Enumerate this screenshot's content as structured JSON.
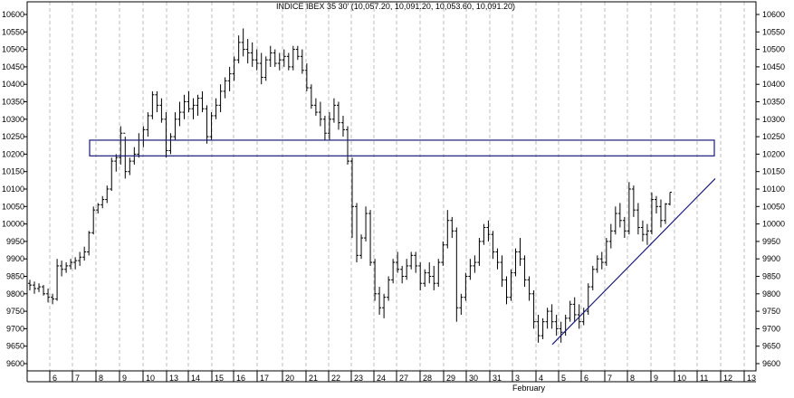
{
  "chart_data": {
    "type": "ohlc",
    "title": "INDICE IBEX 35 30'  (10,057.20, 10,091.20, 10,053.60, 10,091.20)",
    "ylim": [
      9575,
      10640
    ],
    "y_ticks": [
      9600,
      9650,
      9700,
      9750,
      9800,
      9850,
      9900,
      9950,
      10000,
      10050,
      10100,
      10150,
      10200,
      10250,
      10300,
      10350,
      10400,
      10450,
      10500,
      10550,
      10600
    ],
    "y_tick_labels": [
      "9600",
      "9650",
      "9700",
      "9750",
      "9800",
      "9850",
      "9900",
      "9950",
      "10000",
      "10050",
      "10100",
      "10150",
      "10200",
      "10250",
      "10300",
      "10350",
      "10400",
      "10450",
      "10500",
      "10550",
      "10600"
    ],
    "x_labels": [
      "6",
      "7",
      "8",
      "9",
      "10",
      "13",
      "14",
      "15",
      "16",
      "17",
      "20",
      "21",
      "22",
      "23",
      "24",
      "27",
      "28",
      "29",
      "30",
      "31",
      "3",
      "4",
      "5",
      "6",
      "7",
      "8",
      "9",
      "10",
      "11",
      "12",
      "13"
    ],
    "x_sublabel": "February",
    "grid": true,
    "overlays": {
      "resistance_box": {
        "y_low": 10195,
        "y_high": 10240
      },
      "trendline": {
        "y_start": 9655,
        "y_end": 10130
      }
    },
    "series": [
      {
        "bars": [
          [
            9830,
            9840,
            9810,
            9825
          ],
          [
            9825,
            9835,
            9800,
            9815
          ],
          [
            9815,
            9830,
            9805,
            9820
          ],
          [
            9820,
            9825,
            9795,
            9800
          ],
          [
            9800,
            9815,
            9775,
            9790
          ],
          [
            9790,
            9800,
            9770,
            9785
          ],
          [
            9785,
            9900,
            9780,
            9880
          ],
          [
            9880,
            9895,
            9850,
            9870
          ],
          [
            9870,
            9890,
            9860,
            9880
          ],
          [
            9880,
            9900,
            9870,
            9890
          ],
          [
            9890,
            9905,
            9870,
            9895
          ],
          [
            9895,
            9920,
            9880,
            9905
          ],
          [
            9905,
            9935,
            9895,
            9920
          ],
          [
            9920,
            9980,
            9910,
            9975
          ],
          [
            9975,
            10050,
            9970,
            10040
          ],
          [
            10040,
            10060,
            10030,
            10055
          ],
          [
            10055,
            10080,
            10045,
            10070
          ],
          [
            10070,
            10110,
            10060,
            10100
          ],
          [
            10100,
            10190,
            10095,
            10180
          ],
          [
            10180,
            10200,
            10150,
            10190
          ],
          [
            10190,
            10280,
            10170,
            10260
          ],
          [
            10260,
            10250,
            10130,
            10150
          ],
          [
            10150,
            10190,
            10140,
            10180
          ],
          [
            10180,
            10220,
            10170,
            10200
          ],
          [
            10200,
            10260,
            10190,
            10240
          ],
          [
            10240,
            10280,
            10220,
            10270
          ],
          [
            10270,
            10320,
            10250,
            10310
          ],
          [
            10310,
            10380,
            10300,
            10370
          ],
          [
            10370,
            10380,
            10320,
            10340
          ],
          [
            10340,
            10360,
            10290,
            10300
          ],
          [
            10300,
            10320,
            10190,
            10210
          ],
          [
            10210,
            10260,
            10200,
            10250
          ],
          [
            10250,
            10320,
            10240,
            10300
          ],
          [
            10300,
            10350,
            10280,
            10320
          ],
          [
            10320,
            10370,
            10300,
            10350
          ],
          [
            10350,
            10380,
            10320,
            10330
          ],
          [
            10330,
            10360,
            10300,
            10340
          ],
          [
            10340,
            10370,
            10310,
            10360
          ],
          [
            10360,
            10380,
            10320,
            10330
          ],
          [
            10330,
            10340,
            10230,
            10250
          ],
          [
            10250,
            10320,
            10240,
            10310
          ],
          [
            10310,
            10360,
            10300,
            10340
          ],
          [
            10340,
            10400,
            10320,
            10380
          ],
          [
            10380,
            10420,
            10360,
            10410
          ],
          [
            10410,
            10450,
            10380,
            10430
          ],
          [
            10430,
            10480,
            10410,
            10470
          ],
          [
            10470,
            10540,
            10460,
            10520
          ],
          [
            10520,
            10560,
            10480,
            10500
          ],
          [
            10500,
            10530,
            10460,
            10490
          ],
          [
            10490,
            10520,
            10450,
            10470
          ],
          [
            10470,
            10500,
            10440,
            10460
          ],
          [
            10460,
            10490,
            10400,
            10420
          ],
          [
            10420,
            10480,
            10410,
            10470
          ],
          [
            10470,
            10510,
            10450,
            10490
          ],
          [
            10490,
            10500,
            10450,
            10460
          ],
          [
            10460,
            10490,
            10440,
            10470
          ],
          [
            10470,
            10500,
            10450,
            10480
          ],
          [
            10480,
            10490,
            10440,
            10450
          ],
          [
            10450,
            10510,
            10440,
            10500
          ],
          [
            10500,
            10510,
            10470,
            10480
          ],
          [
            10480,
            10500,
            10430,
            10440
          ],
          [
            10440,
            10460,
            10380,
            10390
          ],
          [
            10390,
            10400,
            10330,
            10340
          ],
          [
            10340,
            10360,
            10310,
            10320
          ],
          [
            10320,
            10350,
            10280,
            10300
          ],
          [
            10300,
            10310,
            10240,
            10260
          ],
          [
            10260,
            10320,
            10240,
            10300
          ],
          [
            10300,
            10360,
            10290,
            10340
          ],
          [
            10340,
            10350,
            10270,
            10290
          ],
          [
            10290,
            10310,
            10250,
            10270
          ],
          [
            10270,
            10280,
            10170,
            10180
          ],
          [
            10180,
            10190,
            9960,
            10050
          ],
          [
            10050,
            10060,
            9890,
            9910
          ],
          [
            9910,
            9970,
            9900,
            9960
          ],
          [
            9960,
            10050,
            9950,
            10030
          ],
          [
            10030,
            10040,
            9880,
            9890
          ],
          [
            9890,
            9900,
            9780,
            9800
          ],
          [
            9800,
            9820,
            9740,
            9760
          ],
          [
            9760,
            9800,
            9730,
            9790
          ],
          [
            9790,
            9850,
            9780,
            9840
          ],
          [
            9840,
            9900,
            9830,
            9890
          ],
          [
            9890,
            9920,
            9860,
            9870
          ],
          [
            9870,
            9880,
            9830,
            9850
          ],
          [
            9850,
            9900,
            9840,
            9880
          ],
          [
            9880,
            9920,
            9870,
            9910
          ],
          [
            9910,
            9920,
            9860,
            9880
          ],
          [
            9880,
            9890,
            9810,
            9830
          ],
          [
            9830,
            9870,
            9820,
            9860
          ],
          [
            9860,
            9890,
            9830,
            9850
          ],
          [
            9850,
            9880,
            9810,
            9830
          ],
          [
            9830,
            9900,
            9820,
            9890
          ],
          [
            9890,
            9950,
            9880,
            9940
          ],
          [
            9940,
            10040,
            9930,
            10010
          ],
          [
            10010,
            10020,
            9960,
            9980
          ],
          [
            9980,
            9990,
            9720,
            9760
          ],
          [
            9760,
            9800,
            9740,
            9790
          ],
          [
            9790,
            9860,
            9780,
            9850
          ],
          [
            9850,
            9900,
            9840,
            9880
          ],
          [
            9880,
            9910,
            9860,
            9890
          ],
          [
            9890,
            9960,
            9880,
            9950
          ],
          [
            9950,
            10000,
            9940,
            9990
          ],
          [
            9990,
            10010,
            9950,
            9970
          ],
          [
            9970,
            9980,
            9900,
            9920
          ],
          [
            9920,
            9930,
            9870,
            9890
          ],
          [
            9890,
            9910,
            9820,
            9840
          ],
          [
            9840,
            9850,
            9770,
            9790
          ],
          [
            9790,
            9870,
            9780,
            9860
          ],
          [
            9860,
            9930,
            9850,
            9920
          ],
          [
            9920,
            9960,
            9880,
            9900
          ],
          [
            9900,
            9910,
            9820,
            9840
          ],
          [
            9840,
            9850,
            9780,
            9800
          ],
          [
            9800,
            9810,
            9700,
            9720
          ],
          [
            9720,
            9740,
            9660,
            9680
          ],
          [
            9680,
            9730,
            9670,
            9720
          ],
          [
            9720,
            9760,
            9700,
            9750
          ],
          [
            9750,
            9770,
            9700,
            9720
          ],
          [
            9720,
            9740,
            9680,
            9700
          ],
          [
            9700,
            9720,
            9660,
            9690
          ],
          [
            9690,
            9740,
            9680,
            9730
          ],
          [
            9730,
            9780,
            9720,
            9770
          ],
          [
            9770,
            9790,
            9720,
            9740
          ],
          [
            9740,
            9770,
            9700,
            9720
          ],
          [
            9720,
            9760,
            9710,
            9750
          ],
          [
            9750,
            9830,
            9740,
            9820
          ],
          [
            9820,
            9880,
            9810,
            9870
          ],
          [
            9870,
            9910,
            9860,
            9900
          ],
          [
            9900,
            9920,
            9870,
            9890
          ],
          [
            9890,
            9960,
            9880,
            9950
          ],
          [
            9950,
            10000,
            9930,
            9980
          ],
          [
            9980,
            10050,
            9970,
            10030
          ],
          [
            10030,
            10060,
            9990,
            10010
          ],
          [
            10010,
            10020,
            9960,
            9980
          ],
          [
            9980,
            10120,
            9970,
            10100
          ],
          [
            10100,
            10110,
            10020,
            10040
          ],
          [
            10040,
            10060,
            9970,
            9990
          ],
          [
            9990,
            10010,
            9950,
            9970
          ],
          [
            9970,
            10000,
            9940,
            9980
          ],
          [
            9980,
            10090,
            9970,
            10070
          ],
          [
            10070,
            10080,
            10030,
            10050
          ],
          [
            10050,
            10070,
            9990,
            10010
          ],
          [
            10010,
            10060,
            10000,
            10057
          ],
          [
            10057,
            10091,
            10053,
            10091
          ]
        ]
      }
    ]
  }
}
